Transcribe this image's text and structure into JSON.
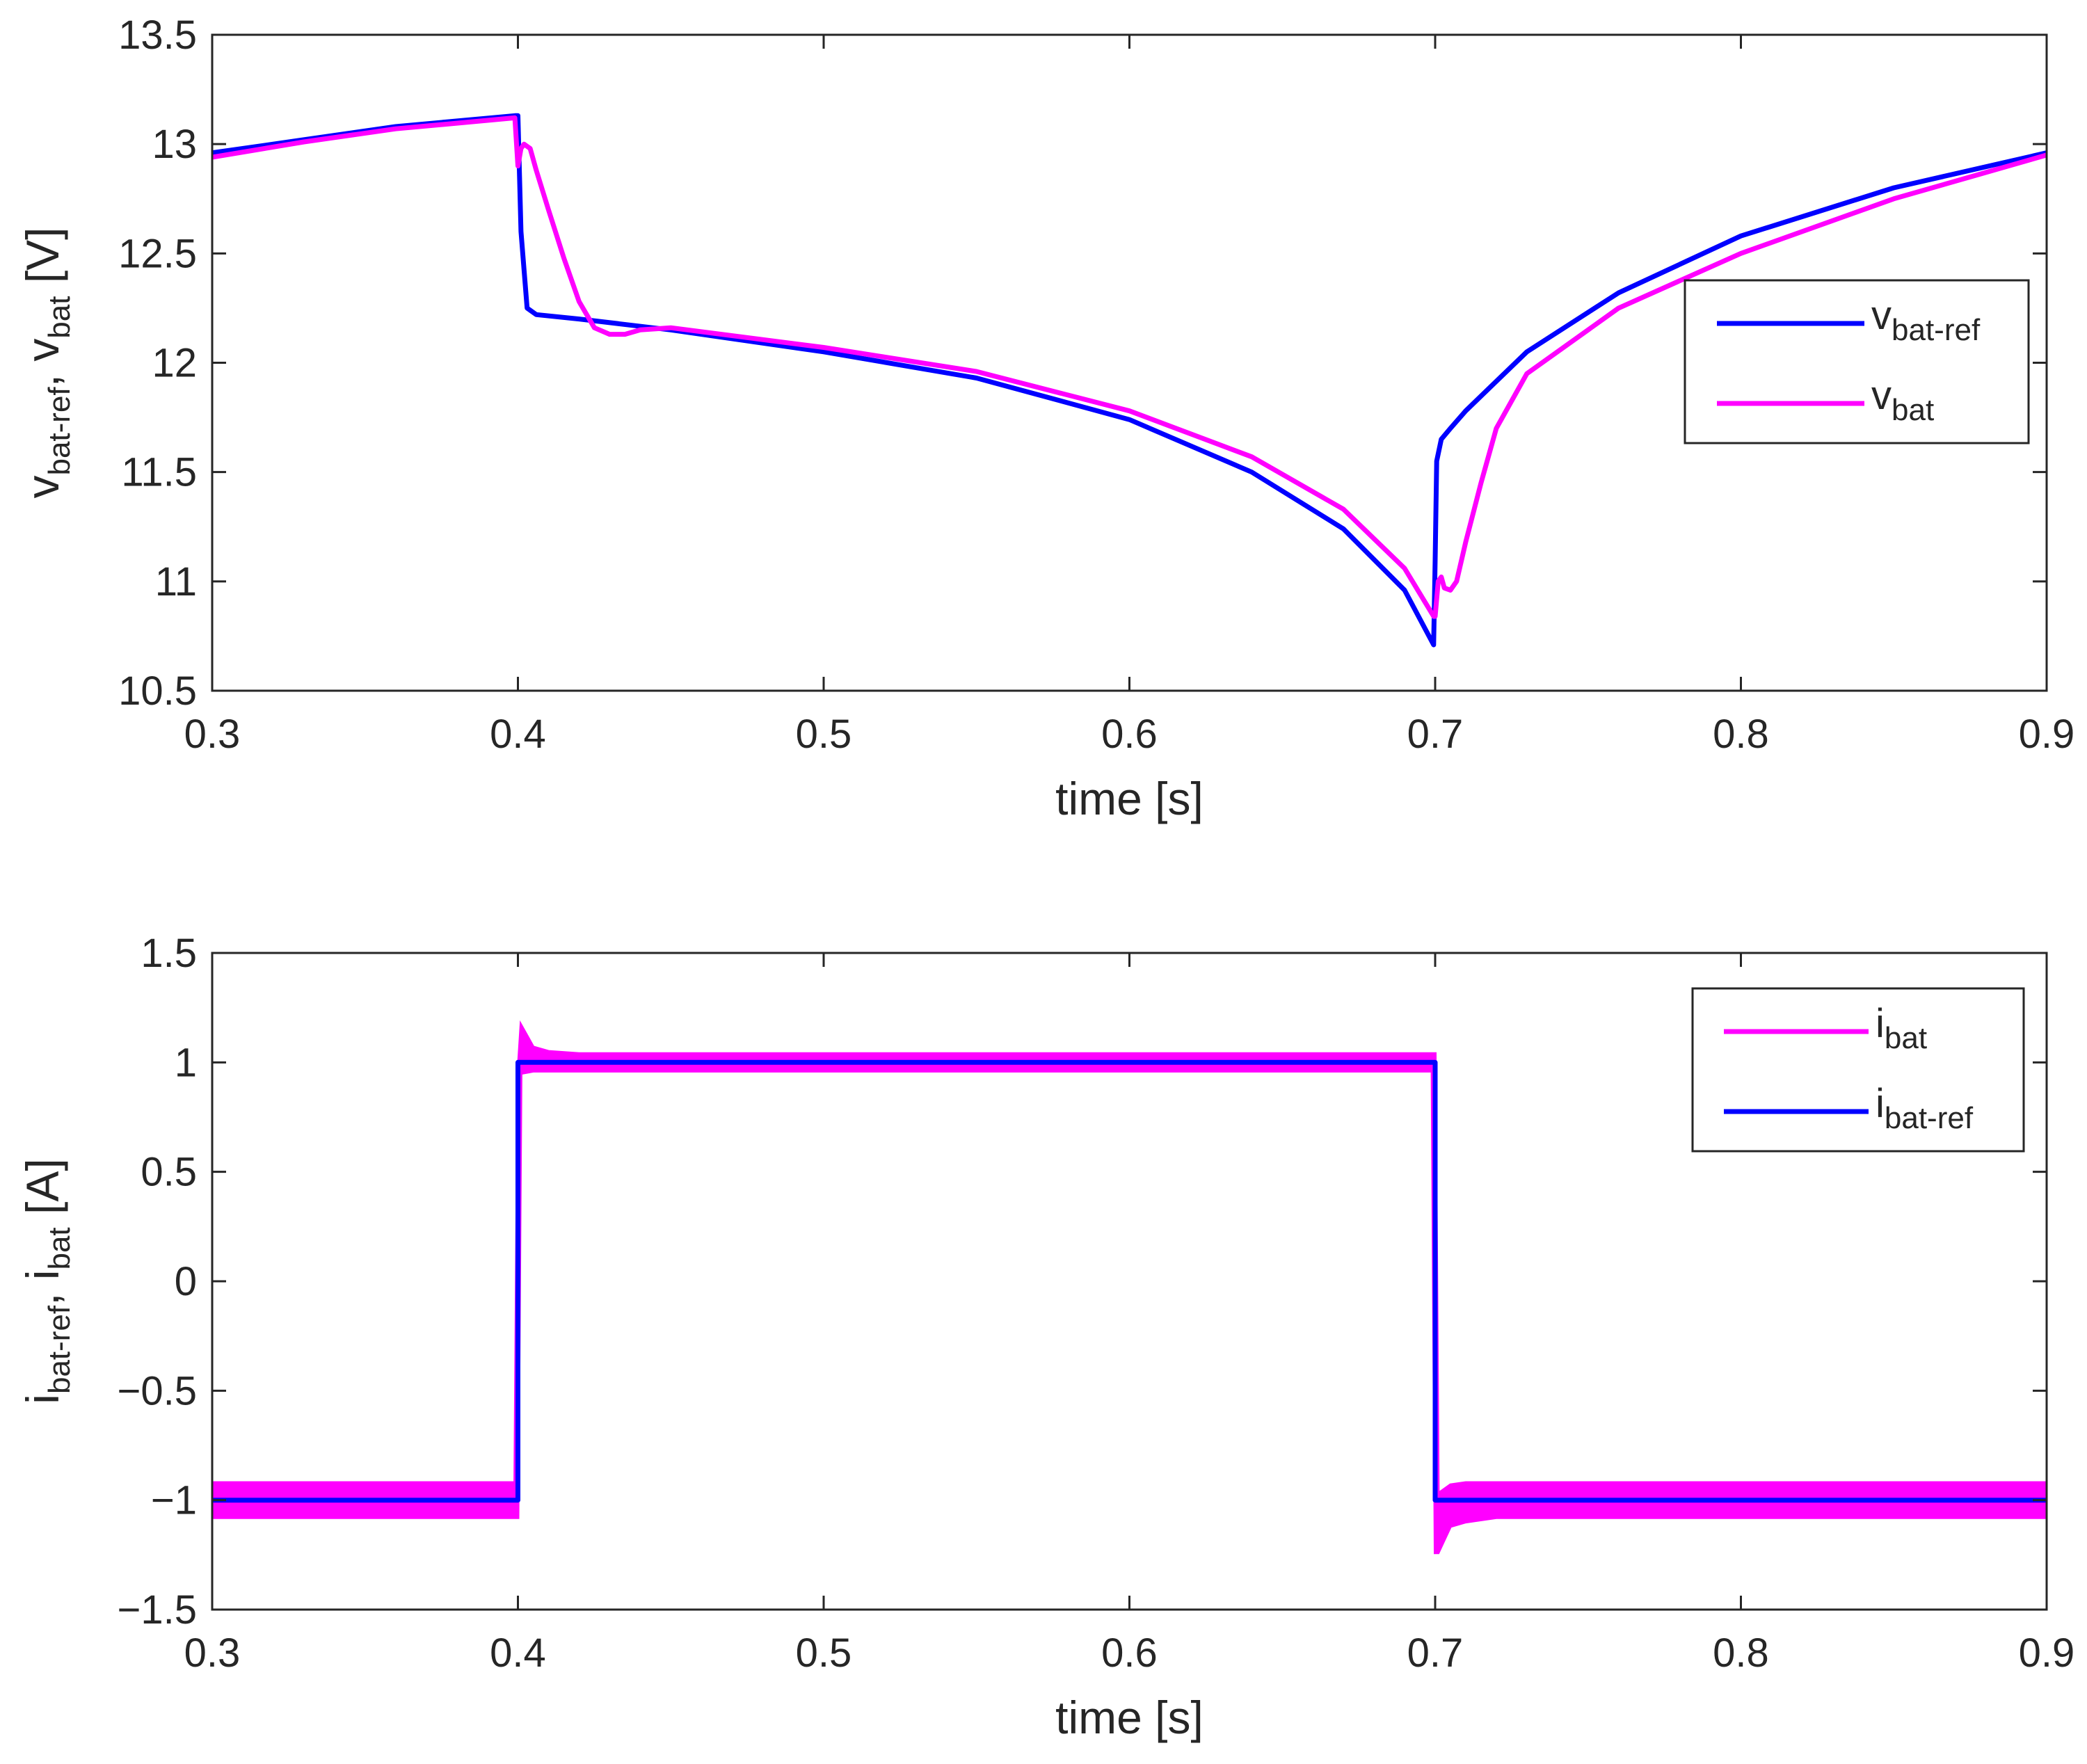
{
  "chart_data": [
    {
      "type": "line",
      "xlabel": "time [s]",
      "ylabel_parts": [
        {
          "text": "v",
          "sub": "bat-ref"
        },
        {
          "text": ", v",
          "sub": "bat"
        },
        {
          "text": " [V]",
          "sub": ""
        }
      ],
      "xlim": [
        0.3,
        0.9
      ],
      "ylim": [
        10.5,
        13.5
      ],
      "xticks": [
        "0.3",
        "0.4",
        "0.5",
        "0.6",
        "0.7",
        "0.8",
        "0.9"
      ],
      "yticks": [
        "10.5",
        "11",
        "11.5",
        "12",
        "12.5",
        "13",
        "13.5"
      ],
      "legend_position": "right",
      "series": [
        {
          "legend": {
            "text": "v",
            "sub": "bat-ref"
          },
          "color": "#0000ff",
          "x": [
            0.3,
            0.33,
            0.36,
            0.399,
            0.4,
            0.401,
            0.403,
            0.406,
            0.42,
            0.45,
            0.5,
            0.55,
            0.6,
            0.64,
            0.67,
            0.69,
            0.6995,
            0.7,
            0.7005,
            0.702,
            0.705,
            0.71,
            0.73,
            0.76,
            0.8,
            0.85,
            0.9
          ],
          "y": [
            12.96,
            13.02,
            13.08,
            13.13,
            13.13,
            12.6,
            12.25,
            12.22,
            12.2,
            12.15,
            12.05,
            11.93,
            11.74,
            11.5,
            11.24,
            10.96,
            10.71,
            11.1,
            11.55,
            11.65,
            11.7,
            11.78,
            12.05,
            12.32,
            12.58,
            12.8,
            12.96
          ]
        },
        {
          "legend": {
            "text": "v",
            "sub": "bat"
          },
          "color": "#ff00ff",
          "x": [
            0.3,
            0.33,
            0.36,
            0.399,
            0.4,
            0.401,
            0.402,
            0.404,
            0.406,
            0.41,
            0.415,
            0.42,
            0.425,
            0.43,
            0.435,
            0.44,
            0.45,
            0.5,
            0.55,
            0.6,
            0.64,
            0.67,
            0.69,
            0.6995,
            0.7,
            0.701,
            0.702,
            0.703,
            0.705,
            0.707,
            0.71,
            0.715,
            0.72,
            0.73,
            0.76,
            0.8,
            0.85,
            0.9
          ],
          "y": [
            12.94,
            13.01,
            13.07,
            13.12,
            12.9,
            12.98,
            13.0,
            12.98,
            12.88,
            12.7,
            12.48,
            12.28,
            12.16,
            12.13,
            12.13,
            12.15,
            12.16,
            12.07,
            11.96,
            11.78,
            11.57,
            11.33,
            11.06,
            10.84,
            10.84,
            11.0,
            11.02,
            10.97,
            10.96,
            11.0,
            11.18,
            11.45,
            11.7,
            11.95,
            12.25,
            12.5,
            12.75,
            12.95
          ]
        }
      ]
    },
    {
      "type": "line",
      "xlabel": "time [s]",
      "ylabel_parts": [
        {
          "text": "i",
          "sub": "bat-ref"
        },
        {
          "text": ", i",
          "sub": "bat"
        },
        {
          "text": " [A]",
          "sub": ""
        }
      ],
      "xlim": [
        0.3,
        0.9
      ],
      "ylim": [
        -1.5,
        1.5
      ],
      "xticks": [
        "0.3",
        "0.4",
        "0.5",
        "0.6",
        "0.7",
        "0.8",
        "0.9"
      ],
      "yticks": [
        "−1.5",
        "−1",
        "−0.5",
        "0",
        "0.5",
        "1",
        "1.5"
      ],
      "legend_position": "top-right",
      "series": [
        {
          "legend": {
            "text": "i",
            "sub": "bat"
          },
          "color": "#ff00ff",
          "band": true,
          "x": [
            0.3,
            0.399,
            0.4,
            0.401,
            0.405,
            0.41,
            0.42,
            0.699,
            0.7,
            0.701,
            0.705,
            0.71,
            0.72,
            0.9
          ],
          "y_low": [
            -1.08,
            -1.08,
            -1.08,
            0.95,
            0.96,
            0.96,
            0.96,
            0.96,
            -1.24,
            -1.24,
            -1.12,
            -1.1,
            -1.08,
            -1.08
          ],
          "y_high": [
            -0.92,
            -0.92,
            0.95,
            1.17,
            1.07,
            1.05,
            1.04,
            1.04,
            1.04,
            -0.97,
            -0.93,
            -0.92,
            -0.92,
            -0.92
          ]
        },
        {
          "legend": {
            "text": "i",
            "sub": "bat-ref"
          },
          "color": "#0000ff",
          "x": [
            0.3,
            0.4,
            0.4,
            0.7,
            0.7,
            0.9
          ],
          "y": [
            -1,
            -1,
            1,
            1,
            -1,
            -1
          ]
        }
      ]
    }
  ]
}
